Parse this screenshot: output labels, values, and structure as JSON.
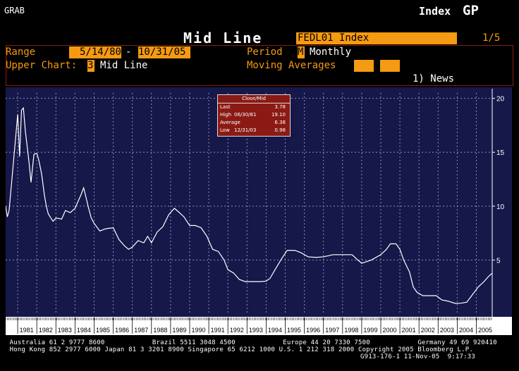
{
  "header": {
    "grab": "GRAB",
    "index_label": "Index",
    "gp": "GP",
    "title": "Mid Line",
    "ticker": "FEDL01 Index",
    "page": "1/5"
  },
  "controls": {
    "range_label": "Range",
    "range_start": "5/14/80",
    "range_dash": "-",
    "range_end": "10/31/05",
    "period_label": "Period",
    "period_code": "M",
    "period_value": "Monthly",
    "upper_chart_label": "Upper Chart:",
    "upper_chart_code": "3",
    "upper_chart_value": "Mid Line",
    "moving_averages_label": "Moving Averages",
    "news": "1) News"
  },
  "stats_box": {
    "title": "Close/Mid",
    "rows": [
      {
        "label": "Last",
        "date": "",
        "value": "3.78"
      },
      {
        "label": "High",
        "date": "06/30/81",
        "value": "19.10"
      },
      {
        "label": "Average",
        "date": "",
        "value": "6.38"
      },
      {
        "label": "Low",
        "date": "12/31/03",
        "value": "0.98"
      }
    ]
  },
  "colors": {
    "background": "#000000",
    "chart_bg": "#16184a",
    "orange": "#f59a12",
    "line": "#ffffff",
    "stats_bg": "#8b1a14"
  },
  "chart_data": {
    "type": "line",
    "title": "",
    "xlabel": "",
    "ylabel": "",
    "y_axis_side": "right",
    "ylim": [
      0,
      20.5
    ],
    "yticks": [
      5,
      10,
      15,
      20
    ],
    "xlim": [
      1980.37,
      2005.83
    ],
    "grid": true,
    "x_ticks": [
      "1981",
      "1982",
      "1983",
      "1984",
      "1985",
      "1986",
      "1987",
      "1988",
      "1989",
      "1990",
      "1991",
      "1992",
      "1993",
      "1994",
      "1995",
      "1996",
      "1997",
      "1998",
      "1999",
      "2000",
      "2001",
      "2002",
      "2003",
      "2004",
      "2005"
    ],
    "series": [
      {
        "name": "",
        "x": [
          1980.37,
          1980.46,
          1980.55,
          1980.7,
          1980.85,
          1981.0,
          1981.1,
          1981.2,
          1981.3,
          1981.4,
          1981.5,
          1981.58,
          1981.7,
          1981.85,
          1982.0,
          1982.1,
          1982.25,
          1982.4,
          1982.5,
          1982.6,
          1982.7,
          1982.85,
          1983.0,
          1983.3,
          1983.5,
          1983.75,
          1984.0,
          1984.3,
          1984.45,
          1984.55,
          1984.7,
          1984.85,
          1985.0,
          1985.3,
          1985.6,
          1986.0,
          1986.3,
          1986.6,
          1986.8,
          1987.0,
          1987.3,
          1987.6,
          1987.8,
          1988.0,
          1988.3,
          1988.6,
          1988.9,
          1989.2,
          1989.4,
          1989.7,
          1990.0,
          1990.3,
          1990.6,
          1990.9,
          1991.2,
          1991.5,
          1991.8,
          1992.0,
          1992.3,
          1992.6,
          1992.9,
          1993.3,
          1993.7,
          1994.0,
          1994.2,
          1994.5,
          1994.8,
          1995.1,
          1995.5,
          1995.8,
          1996.2,
          1996.6,
          1997.0,
          1997.5,
          1998.0,
          1998.5,
          1998.8,
          1999.0,
          1999.5,
          2000.0,
          2000.3,
          2000.5,
          2000.8,
          2001.0,
          2001.2,
          2001.5,
          2001.7,
          2001.9,
          2002.2,
          2002.5,
          2002.9,
          2003.2,
          2003.5,
          2003.9,
          2004.2,
          2004.5,
          2004.8,
          2005.1,
          2005.4,
          2005.65,
          2005.83
        ],
        "y": [
          10.0,
          9.0,
          9.6,
          12.5,
          15.5,
          18.5,
          14.6,
          18.9,
          19.1,
          17.0,
          15.5,
          14.3,
          12.2,
          14.8,
          14.9,
          14.3,
          13.0,
          11.0,
          10.0,
          9.3,
          9.0,
          8.6,
          8.9,
          8.8,
          9.6,
          9.4,
          9.8,
          11.0,
          11.7,
          11.0,
          9.9,
          8.9,
          8.4,
          7.7,
          7.9,
          8.0,
          6.9,
          6.3,
          6.0,
          6.2,
          6.8,
          6.6,
          7.2,
          6.6,
          7.6,
          8.1,
          9.2,
          9.8,
          9.5,
          9.0,
          8.2,
          8.2,
          8.0,
          7.2,
          6.0,
          5.8,
          5.0,
          4.1,
          3.8,
          3.2,
          3.0,
          3.0,
          3.0,
          3.05,
          3.3,
          4.2,
          5.1,
          5.9,
          5.9,
          5.7,
          5.3,
          5.25,
          5.3,
          5.5,
          5.5,
          5.5,
          5.0,
          4.7,
          5.0,
          5.5,
          6.0,
          6.5,
          6.5,
          6.0,
          5.0,
          3.9,
          2.5,
          2.0,
          1.7,
          1.7,
          1.7,
          1.3,
          1.2,
          0.98,
          1.0,
          1.1,
          1.8,
          2.5,
          3.0,
          3.5,
          3.78
        ]
      }
    ]
  },
  "footer": {
    "line1": " Australia 61 2 9777 8600            Brazil 5511 3048 4500            Europe 44 20 7330 7500            Germany 49 69 920410",
    "line2": " Hong Kong 852 2977 6000 Japan 81 3 3201 8900 Singapore 65 6212 1000 U.S. 1 212 318 2000 Copyright 2005 Bloomberg L.P.",
    "line3": "G913-176-1 11-Nov-05  9:17:33"
  }
}
